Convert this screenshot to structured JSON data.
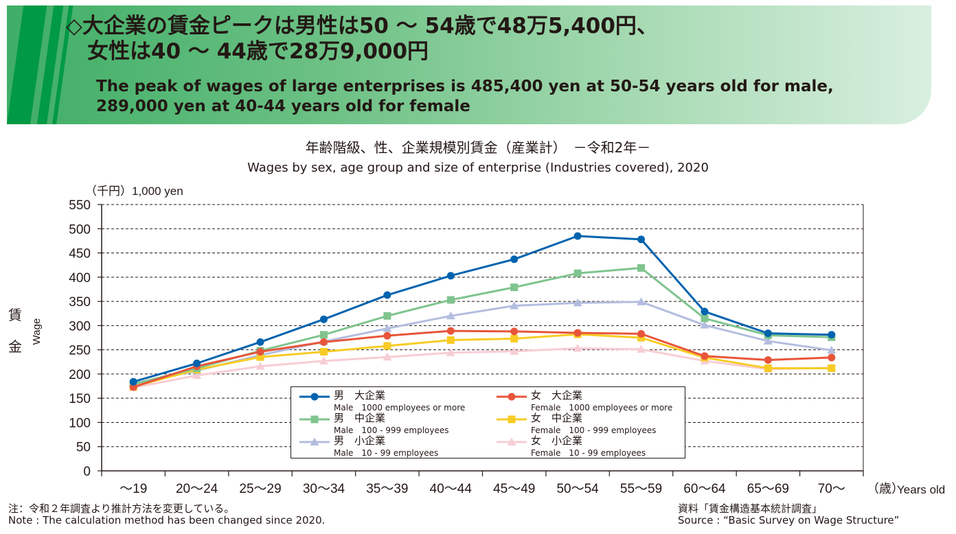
{
  "banner": {
    "headline_jp": "◇大企業の賃金ピークは男性は50 ～ 54歳で48万5,400円、\n　女性は40 ～ 44歳で28万9,000円",
    "headline_en": "The peak of wages of large enterprises is 485,400 yen at 50-54 years old for male,\n289,000 yen at 40-44 years old for female"
  },
  "colors": {
    "banner_green": "#009944",
    "male_large": "#0063ae",
    "male_medium": "#7fc48e",
    "male_small": "#b3bddf",
    "female_large": "#e8553a",
    "female_medium": "#f8cc24",
    "female_small": "#f7cdd4"
  },
  "chart_data": {
    "type": "line",
    "title": "年齢階級、性、企業規模別賃金（産業計）　－令和2年－",
    "subtitle": "Wages by sex, age group and size of enterprise (Industries covered), 2020",
    "y_unit_label": "（千円）1,000 yen",
    "ylabel_jp": "賃金",
    "ylabel_en": "Wage",
    "x_unit_label": "（歳）",
    "xlabel_en": "Years old",
    "ylim": [
      0,
      550
    ],
    "yticks": [
      0,
      50,
      100,
      150,
      200,
      250,
      300,
      350,
      400,
      450,
      500,
      550
    ],
    "grid": "horizontal dashed",
    "legend_position": "bottom-center inside plot",
    "categories": [
      "～19",
      "20～24",
      "25～29",
      "30～34",
      "35～39",
      "40～44",
      "45～49",
      "50～54",
      "55～59",
      "60～64",
      "65～69",
      "70～"
    ],
    "series": [
      {
        "jp": "男　大企業",
        "name": "Male　1000 employees or more",
        "marker": "circle",
        "color": "#0063ae",
        "values": [
          184,
          222,
          266,
          313,
          363,
          403,
          437,
          485,
          478,
          329,
          284,
          281
        ]
      },
      {
        "jp": "女　大企業",
        "name": "Female　1000 employees or more",
        "marker": "circle",
        "color": "#e8553a",
        "values": [
          173,
          216,
          246,
          266,
          279,
          289,
          288,
          285,
          283,
          237,
          229,
          234
        ]
      },
      {
        "jp": "男　中企業",
        "name": "Male　100 - 999 employees",
        "marker": "square",
        "color": "#7fc48e",
        "values": [
          179,
          212,
          248,
          281,
          320,
          353,
          379,
          408,
          419,
          315,
          280,
          276
        ]
      },
      {
        "jp": "女　中企業",
        "name": "Female　100 - 999 employees",
        "marker": "square",
        "color": "#f8cc24",
        "values": [
          174,
          209,
          235,
          246,
          258,
          270,
          273,
          282,
          275,
          234,
          212,
          212
        ]
      },
      {
        "jp": "男　小企業",
        "name": "Male　10 - 99 employees",
        "marker": "triangle",
        "color": "#b3bddf",
        "values": [
          180,
          207,
          239,
          267,
          294,
          320,
          341,
          347,
          349,
          301,
          268,
          249
        ]
      },
      {
        "jp": "女　小企業",
        "name": "Female　10 - 99 employees",
        "marker": "triangle",
        "color": "#f7cdd4",
        "values": [
          172,
          197,
          216,
          227,
          235,
          244,
          247,
          253,
          251,
          227,
          210,
          213
        ]
      }
    ]
  },
  "notes": {
    "note_jp": "注：令和２年調査より推計方法を変更している。",
    "note_en": "Note : The calculation method has been changed since 2020.",
    "source_jp": "資料「賃金構造基本統計調査」",
    "source_en": "Source : “Basic Survey on Wage Structure”"
  }
}
